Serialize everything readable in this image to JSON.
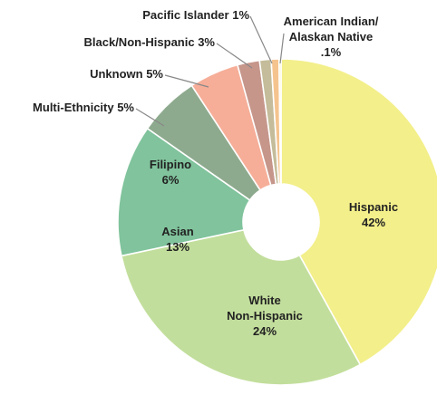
{
  "chart_data": {
    "type": "pie",
    "variant": "donut",
    "start": "12 o'clock, clockwise",
    "slices": [
      {
        "lines": [
          "Hispanic",
          "42%"
        ],
        "value": 42,
        "color": "#f3ef8a"
      },
      {
        "lines": [
          "White",
          "Non-Hispanic",
          "24%"
        ],
        "value": 24,
        "color": "#c2de9c"
      },
      {
        "lines": [
          "Asian",
          "13%"
        ],
        "value": 13,
        "color": "#80c39c"
      },
      {
        "lines": [
          "Filipino",
          "6%"
        ],
        "value": 6,
        "color": "#8eaa8e"
      },
      {
        "lines": [
          "Multi-Ethnicity 5%"
        ],
        "value": 5,
        "color": "#f6ae98"
      },
      {
        "lines": [
          "Unknown 5%"
        ],
        "value": 5,
        "color": "#c6968b"
      },
      {
        "lines": [
          "Black/Non-Hispanic 3%"
        ],
        "value": 3,
        "color": "#c4bc9a"
      },
      {
        "lines": [
          "Pacific Islander 1%"
        ],
        "value": 1,
        "color": "#f5c48e"
      },
      {
        "lines": [
          "American Indian/",
          "Alaskan Native",
          ".1%"
        ],
        "value": 0.1,
        "color": "#f5f1a3"
      }
    ]
  }
}
